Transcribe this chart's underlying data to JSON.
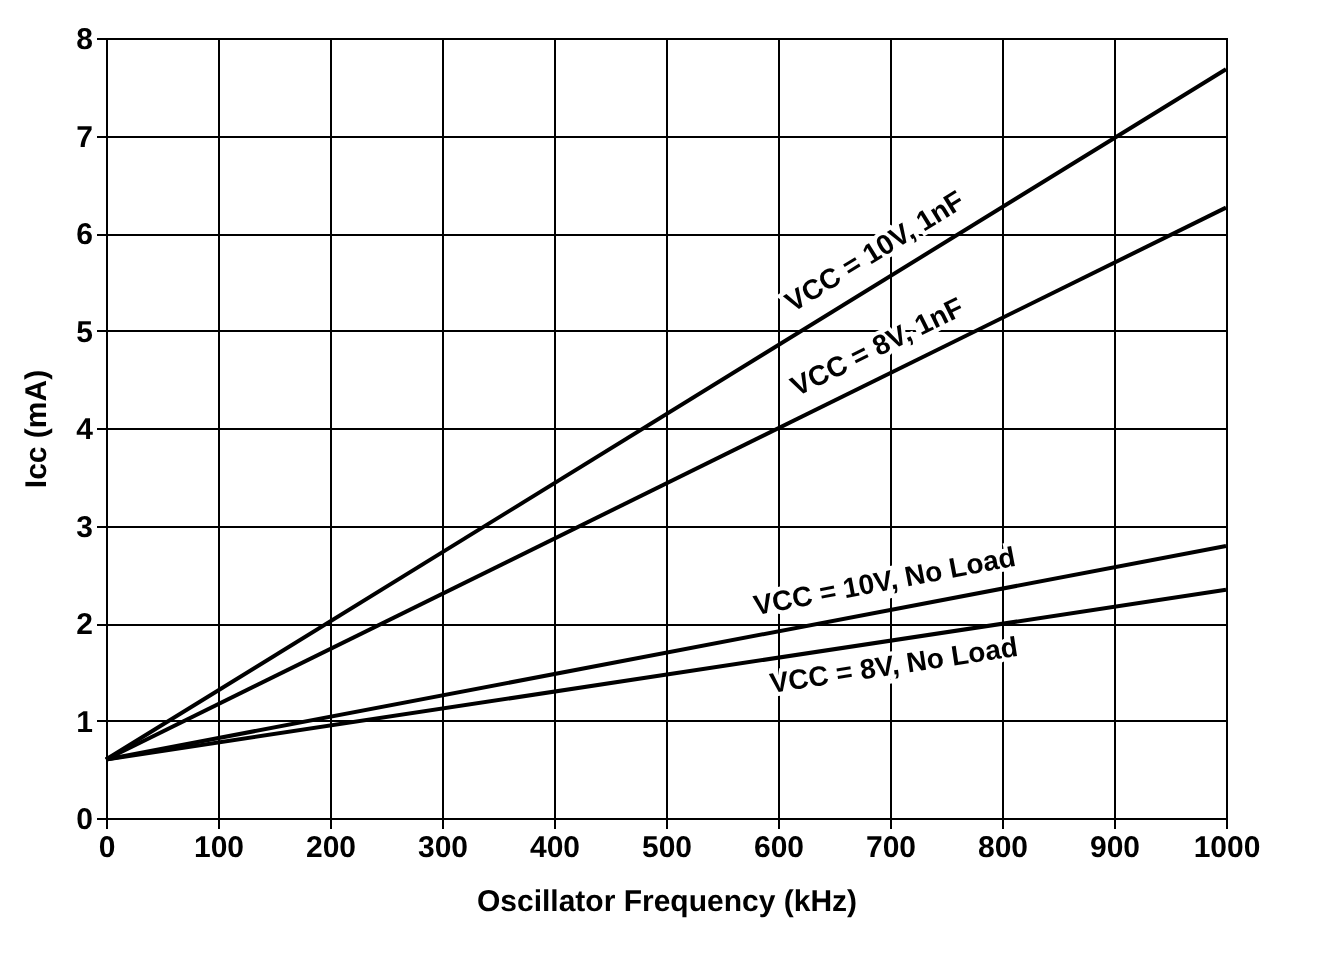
{
  "chart_data": {
    "type": "line",
    "xlabel": "Oscillator Frequency (kHz)",
    "ylabel": "Icc (mA)",
    "x": [
      0,
      1000
    ],
    "series": [
      {
        "name": "VCC = 10V, 1nF",
        "color": "#000000",
        "values": [
          0.6,
          7.68
        ]
      },
      {
        "name": "VCC = 8V, 1nF",
        "color": "#000000",
        "values": [
          0.6,
          6.26
        ]
      },
      {
        "name": "VCC = 10V, No Load",
        "color": "#000000",
        "values": [
          0.6,
          2.79
        ]
      },
      {
        "name": "VCC = 8V, No Load",
        "color": "#000000",
        "values": [
          0.6,
          2.34
        ]
      }
    ],
    "xlim": [
      0,
      1000
    ],
    "xticks": [
      0,
      100,
      200,
      300,
      400,
      500,
      600,
      700,
      800,
      900,
      1000
    ],
    "ylim": [
      0,
      8
    ],
    "yticks": [
      0,
      1,
      2,
      3,
      4,
      5,
      6,
      7,
      8
    ],
    "grid": true,
    "legend": false,
    "marker": "none",
    "line_style": "solid"
  }
}
